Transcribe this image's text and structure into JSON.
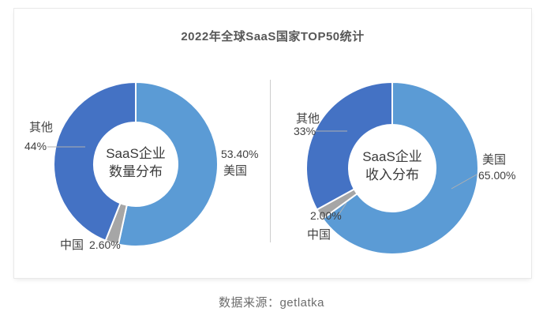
{
  "header": {
    "title": "2022年全球SaaS国家TOP50统计"
  },
  "footer": {
    "source": "数据来源：getlatka"
  },
  "colors": {
    "usa_slice": "#5B9BD5",
    "china_slice": "#A6A6A6",
    "other_slice": "#4472C4",
    "divider": "#cccccc"
  },
  "chart_data": [
    {
      "type": "pie",
      "subtype": "donut",
      "title": "SaaS企业数量分布",
      "center_label": [
        "SaaS企业",
        "数量分布"
      ],
      "start_angle": "12-oclock",
      "direction": "clockwise",
      "slices": [
        {
          "key": "usa",
          "name": "美国",
          "value": 53.4,
          "label": "53.40%",
          "color": "#5B9BD5"
        },
        {
          "key": "china",
          "name": "中国",
          "value": 2.6,
          "label": "2.60%",
          "color": "#A6A6A6"
        },
        {
          "key": "other",
          "name": "其他",
          "value": 44.0,
          "label": "44%",
          "color": "#4472C4"
        }
      ]
    },
    {
      "type": "pie",
      "subtype": "donut",
      "title": "SaaS企业收入分布",
      "center_label": [
        "SaaS企业",
        "收入分布"
      ],
      "start_angle": "12-oclock",
      "direction": "clockwise",
      "slices": [
        {
          "key": "usa",
          "name": "美国",
          "value": 65.0,
          "label": "65.00%",
          "color": "#5B9BD5"
        },
        {
          "key": "china",
          "name": "中国",
          "value": 2.0,
          "label": "2.00%",
          "color": "#A6A6A6"
        },
        {
          "key": "other",
          "name": "其他",
          "value": 33.0,
          "label": "33%",
          "color": "#4472C4"
        }
      ]
    }
  ]
}
